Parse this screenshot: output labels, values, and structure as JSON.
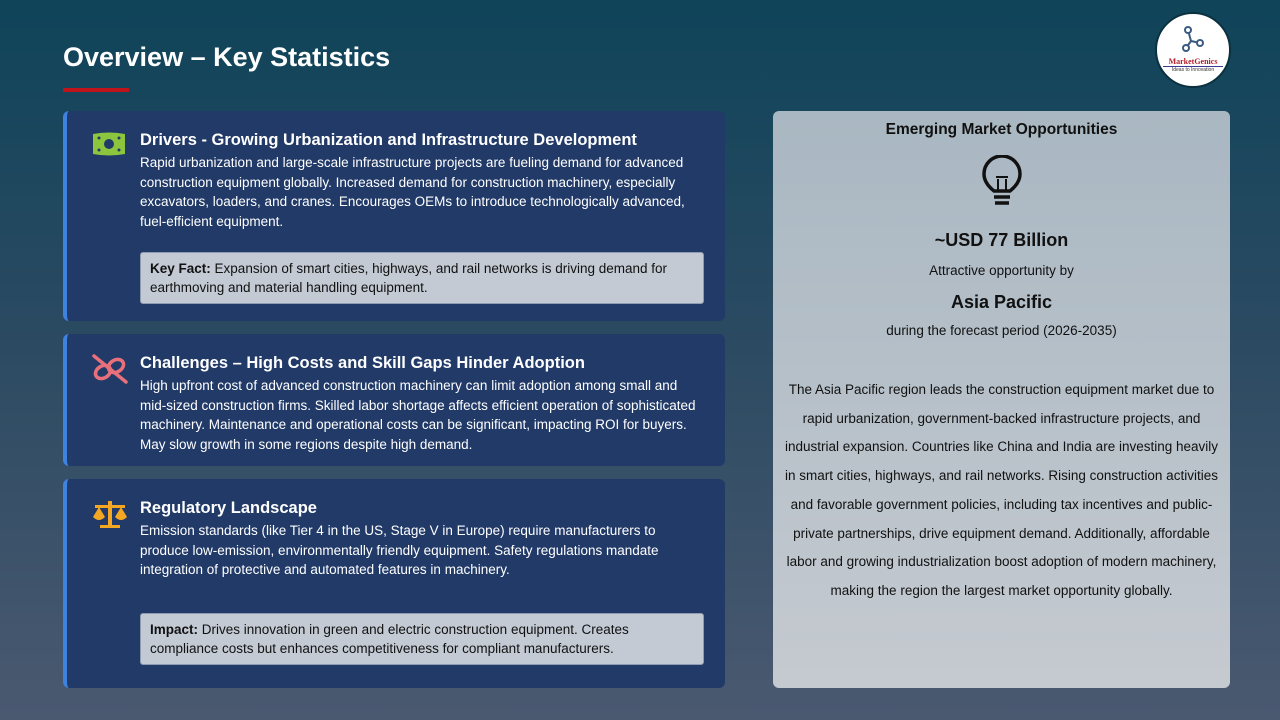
{
  "title": "Overview – Key Statistics",
  "logo": {
    "name": "MarketGenics",
    "tagline": "Ideas to Innovation"
  },
  "cards": [
    {
      "icon": "money-icon",
      "heading": "Drivers - Growing Urbanization and Infrastructure Development",
      "body": "Rapid urbanization and large-scale infrastructure projects are fueling demand for advanced construction equipment globally. Increased demand for construction machinery, especially excavators, loaders, and cranes. Encourages OEMs to introduce technologically advanced, fuel-efficient equipment.",
      "fact_label": "Key Fact:",
      "fact": "Expansion of smart cities, highways, and rail networks is driving demand for earthmoving and material handling equipment."
    },
    {
      "icon": "broken-link-icon",
      "heading": "Challenges – High Costs and Skill Gaps Hinder Adoption",
      "body": "High upfront cost of advanced construction machinery can limit adoption among small and mid-sized construction firms. Skilled labor shortage affects efficient operation of sophisticated machinery. Maintenance and operational costs can be significant, impacting ROI for buyers. May slow growth in some regions despite high demand."
    },
    {
      "icon": "scales-icon",
      "heading": "Regulatory Landscape",
      "body": "Emission standards (like Tier 4 in the US, Stage V in Europe) require manufacturers to produce low-emission, environmentally friendly equipment. Safety regulations mandate integration of protective and automated features in machinery.",
      "fact_label": "Impact:",
      "fact": "Drives innovation in green and electric construction equipment. Creates compliance costs but enhances competitiveness for compliant manufacturers."
    }
  ],
  "opportunity": {
    "heading": "Emerging Market Opportunities",
    "icon": "lightbulb-icon",
    "value": "~USD 77 Billion",
    "line1": "Attractive opportunity  by",
    "region": "Asia Pacific",
    "period": "during the forecast period (2026-2035)",
    "body": "The Asia Pacific region leads the construction equipment market due to rapid urbanization, government-backed  infrastructure projects, and industrial expansion. Countries like China and India are investing heavily in smart cities, highways, and rail networks. Rising construction activities and favorable government policies, including tax incentives and public-private partnerships, drive equipment demand. Additionally, affordable labor and growing industrialization boost adoption of modern machinery, making the region the largest market opportunity  globally."
  }
}
